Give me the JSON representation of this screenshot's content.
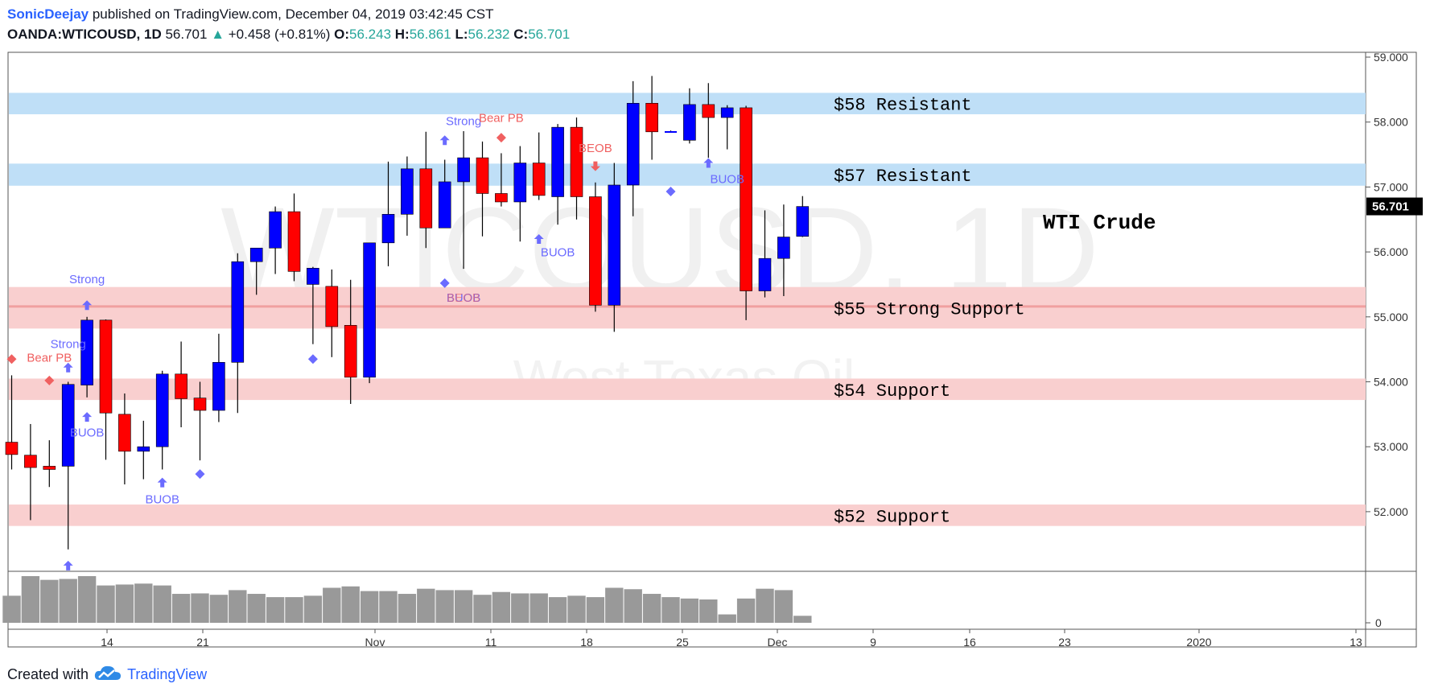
{
  "header": {
    "user": "SonicDeejay",
    "published_text": "published on TradingView.com, December 04, 2019 03:42:45 CST",
    "symbol": "OANDA:WTICOUSD, 1D",
    "last": "56.701",
    "change_arrow": "▲",
    "change": "+0.458 (+0.81%)",
    "open_label": "O:",
    "open": "56.243",
    "high_label": "H:",
    "high": "56.861",
    "low_label": "L:",
    "low": "56.232",
    "close_label": "C:",
    "close": "56.701"
  },
  "footer": {
    "created_with": "Created with",
    "brand": "TradingView",
    "logo_icon": "tradingview-cloud-icon"
  },
  "colors": {
    "bull": "#0000ff",
    "bear": "#ff0000",
    "resistance_zone": "#bfdff7",
    "support_zone": "#f9cfcf",
    "volume": "#999999",
    "signal_bull": "#6b6bff",
    "signal_bear": "#f06060",
    "price_tag": "#000000"
  },
  "chart_data": {
    "type": "candlestick",
    "ylim": [
      51.1,
      59.1
    ],
    "y_ticks": [
      "59.000",
      "58.000",
      "57.000",
      "56.000",
      "55.000",
      "54.000",
      "53.000",
      "52.000"
    ],
    "volume_tick": "0",
    "x_ticks": [
      "14",
      "21",
      "Nov",
      "11",
      "18",
      "25",
      "Dec",
      "9",
      "16",
      "23",
      "2020",
      "13"
    ],
    "current_price_label": "56.701",
    "watermark": [
      "WTICOUSD, 1D",
      "West Texas Oil"
    ],
    "chart_title": "WTI Crude",
    "zones": [
      {
        "label": "$58 Resistant",
        "type": "resistance",
        "from": 58.12,
        "to": 58.45
      },
      {
        "label": "$57 Resistant",
        "type": "resistance",
        "from": 57.02,
        "to": 57.36
      },
      {
        "label": "$55 Strong Support",
        "type": "support",
        "from": 54.82,
        "to": 55.46,
        "line": 55.16
      },
      {
        "label": "$54 Support",
        "type": "support",
        "from": 53.72,
        "to": 54.05
      },
      {
        "label": "$52 Support",
        "type": "support",
        "from": 51.78,
        "to": 52.11
      }
    ],
    "candles": [
      {
        "o": 53.07,
        "h": 54.1,
        "l": 52.65,
        "c": 52.88
      },
      {
        "o": 52.87,
        "h": 53.35,
        "l": 51.87,
        "c": 52.68
      },
      {
        "o": 52.7,
        "h": 53.1,
        "l": 52.38,
        "c": 52.65
      },
      {
        "o": 52.7,
        "h": 54.0,
        "l": 51.42,
        "c": 53.96
      },
      {
        "o": 53.95,
        "h": 55.0,
        "l": 53.76,
        "c": 54.95
      },
      {
        "o": 54.95,
        "h": 54.96,
        "l": 52.8,
        "c": 53.52
      },
      {
        "o": 53.5,
        "h": 53.82,
        "l": 52.42,
        "c": 52.93
      },
      {
        "o": 52.93,
        "h": 53.4,
        "l": 52.5,
        "c": 53.0
      },
      {
        "o": 53.0,
        "h": 54.17,
        "l": 52.65,
        "c": 54.12
      },
      {
        "o": 54.12,
        "h": 54.62,
        "l": 53.3,
        "c": 53.74
      },
      {
        "o": 53.75,
        "h": 54.0,
        "l": 52.79,
        "c": 53.56
      },
      {
        "o": 53.56,
        "h": 54.74,
        "l": 53.38,
        "c": 54.3
      },
      {
        "o": 54.3,
        "h": 55.98,
        "l": 53.52,
        "c": 55.85
      },
      {
        "o": 55.85,
        "h": 56.02,
        "l": 55.34,
        "c": 56.06
      },
      {
        "o": 56.06,
        "h": 56.7,
        "l": 55.66,
        "c": 56.62
      },
      {
        "o": 56.62,
        "h": 56.9,
        "l": 55.55,
        "c": 55.7
      },
      {
        "o": 55.5,
        "h": 55.77,
        "l": 54.58,
        "c": 55.75
      },
      {
        "o": 55.47,
        "h": 55.73,
        "l": 54.38,
        "c": 54.85
      },
      {
        "o": 54.87,
        "h": 55.57,
        "l": 53.66,
        "c": 54.07
      },
      {
        "o": 54.07,
        "h": 56.12,
        "l": 53.98,
        "c": 56.14
      },
      {
        "o": 56.14,
        "h": 57.39,
        "l": 55.78,
        "c": 56.58
      },
      {
        "o": 56.58,
        "h": 57.47,
        "l": 56.25,
        "c": 57.28
      },
      {
        "o": 57.28,
        "h": 57.85,
        "l": 56.06,
        "c": 56.37
      },
      {
        "o": 56.37,
        "h": 57.42,
        "l": 56.37,
        "c": 57.08
      },
      {
        "o": 57.08,
        "h": 57.86,
        "l": 55.74,
        "c": 57.45
      },
      {
        "o": 57.45,
        "h": 57.7,
        "l": 56.24,
        "c": 56.9
      },
      {
        "o": 56.9,
        "h": 57.52,
        "l": 56.7,
        "c": 56.77
      },
      {
        "o": 56.77,
        "h": 57.63,
        "l": 56.16,
        "c": 57.37
      },
      {
        "o": 57.37,
        "h": 57.84,
        "l": 56.8,
        "c": 56.87
      },
      {
        "o": 56.85,
        "h": 57.97,
        "l": 56.42,
        "c": 57.92
      },
      {
        "o": 57.92,
        "h": 58.07,
        "l": 56.5,
        "c": 56.85
      },
      {
        "o": 56.85,
        "h": 57.07,
        "l": 55.08,
        "c": 55.18
      },
      {
        "o": 55.18,
        "h": 57.37,
        "l": 54.77,
        "c": 57.03
      },
      {
        "o": 57.03,
        "h": 58.63,
        "l": 56.55,
        "c": 58.29
      },
      {
        "o": 58.29,
        "h": 58.71,
        "l": 57.42,
        "c": 57.85
      },
      {
        "o": 57.85,
        "h": 57.87,
        "l": 57.84,
        "c": 57.86
      },
      {
        "o": 57.72,
        "h": 58.52,
        "l": 57.67,
        "c": 58.27
      },
      {
        "o": 58.27,
        "h": 58.6,
        "l": 57.45,
        "c": 58.07
      },
      {
        "o": 58.07,
        "h": 58.26,
        "l": 57.58,
        "c": 58.22
      },
      {
        "o": 58.22,
        "h": 58.25,
        "l": 54.95,
        "c": 55.4
      },
      {
        "o": 55.4,
        "h": 56.64,
        "l": 55.3,
        "c": 55.9
      },
      {
        "o": 55.9,
        "h": 56.73,
        "l": 55.32,
        "c": 56.23
      },
      {
        "o": 56.24,
        "h": 56.86,
        "l": 56.23,
        "c": 56.7
      }
    ],
    "volume": [
      0.58,
      1.0,
      0.92,
      0.94,
      1.0,
      0.8,
      0.82,
      0.84,
      0.8,
      0.62,
      0.63,
      0.6,
      0.7,
      0.62,
      0.55,
      0.55,
      0.58,
      0.75,
      0.78,
      0.68,
      0.68,
      0.62,
      0.73,
      0.7,
      0.7,
      0.6,
      0.66,
      0.63,
      0.63,
      0.55,
      0.58,
      0.55,
      0.75,
      0.72,
      0.62,
      0.55,
      0.52,
      0.5,
      0.18,
      0.52,
      0.73,
      0.7,
      0.15
    ],
    "signals": [
      {
        "kind": "arrow-up",
        "bar": 3,
        "price": 51.17
      },
      {
        "kind": "arrow-up",
        "bar": 3,
        "price": 54.22
      },
      {
        "kind": "arrow-up",
        "bar": 4,
        "price": 53.46
      },
      {
        "kind": "arrow-up",
        "bar": 4,
        "price": 55.18
      },
      {
        "kind": "arrow-up",
        "bar": 8,
        "price": 52.45
      },
      {
        "kind": "arrow-up",
        "bar": 23,
        "price": 57.72
      },
      {
        "kind": "arrow-up",
        "bar": 28,
        "price": 56.2
      },
      {
        "kind": "arrow-up",
        "bar": 37,
        "price": 57.37
      },
      {
        "kind": "arrow-down",
        "bar": 31,
        "price": 57.32
      },
      {
        "kind": "diamond-bull",
        "bar": 10,
        "price": 52.58
      },
      {
        "kind": "diamond-bull",
        "bar": 16,
        "price": 54.35
      },
      {
        "kind": "diamond-bull",
        "bar": 23,
        "price": 55.52
      },
      {
        "kind": "diamond-bull",
        "bar": 35,
        "price": 56.93
      },
      {
        "kind": "diamond-bear",
        "bar": 0,
        "price": 54.35
      },
      {
        "kind": "diamond-bear",
        "bar": 2,
        "price": 54.02
      },
      {
        "kind": "diamond-bear",
        "bar": 26,
        "price": 57.76
      }
    ],
    "signal_labels": [
      {
        "text": "Strong",
        "bar": 4,
        "price": 55.52,
        "kind": "bull"
      },
      {
        "text": "Strong",
        "bar": 3,
        "price": 54.52,
        "kind": "bull"
      },
      {
        "text": "Bear PB",
        "bar": 2,
        "price": 54.31,
        "kind": "bear"
      },
      {
        "text": "BUOB",
        "bar": 4,
        "price": 53.16,
        "kind": "bull"
      },
      {
        "text": "BUOB",
        "bar": 8,
        "price": 52.13,
        "kind": "bull"
      },
      {
        "text": "Strong",
        "bar": 24,
        "price": 57.95,
        "kind": "bull"
      },
      {
        "text": "Bear PB",
        "bar": 26,
        "price": 58.0,
        "kind": "bear"
      },
      {
        "text": "BEOB",
        "bar": 31,
        "price": 57.54,
        "kind": "bear"
      },
      {
        "text": "BUOB",
        "bar": 29,
        "price": 55.93,
        "kind": "bull"
      },
      {
        "text": "BUOB",
        "bar": 38,
        "price": 57.06,
        "kind": "bull"
      },
      {
        "text": "BUOB",
        "bar": 24,
        "price": 55.23,
        "kind": "bull"
      },
      {
        "text": "BEOB",
        "bar": 24,
        "price": 55.23,
        "kind": "bear"
      }
    ]
  }
}
